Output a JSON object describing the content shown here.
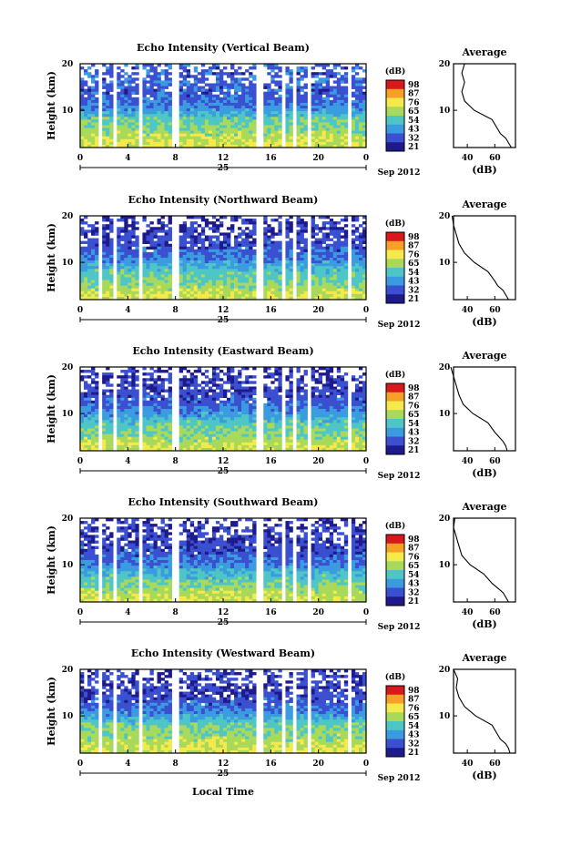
{
  "figure": {
    "colorbar_unit": "(dB)",
    "colorbar_ticks": [
      "98",
      "87",
      "76",
      "65",
      "54",
      "43",
      "32",
      "21"
    ],
    "colorbar_colors": [
      "#d7191c",
      "#f7a028",
      "#f5e94b",
      "#a9d95b",
      "#4fc6c6",
      "#3b9be0",
      "#3b4fd1",
      "#1e1a8c"
    ],
    "x_tick_labels": [
      "0",
      "4",
      "8",
      "12",
      "16",
      "20",
      "0"
    ],
    "date_day": "25",
    "date_label": "Sep 2012",
    "x_axis_label": "Local Time",
    "y_axis_label": "Height (km)",
    "y_tick_labels": [
      "20",
      "10"
    ],
    "avg_title": "Average",
    "avg_xlabel": "(dB)",
    "avg_x_tick_labels": [
      "40",
      "60"
    ]
  },
  "chart_data": [
    {
      "type": "heatmap",
      "title": "Echo Intensity (Vertical Beam)",
      "x_range": [
        0,
        24
      ],
      "y_range": [
        2,
        20
      ],
      "z_range": [
        21,
        98
      ],
      "profile_title": "Average",
      "profile": {
        "height_km": [
          2,
          3,
          4,
          5,
          6,
          8,
          10,
          12,
          14,
          16,
          18,
          20
        ],
        "mean_db": [
          72,
          70,
          68,
          64,
          62,
          58,
          45,
          38,
          36,
          38,
          36,
          38
        ]
      }
    },
    {
      "type": "heatmap",
      "title": "Echo Intensity (Northward Beam)",
      "x_range": [
        0,
        24
      ],
      "y_range": [
        2,
        20
      ],
      "z_range": [
        21,
        98
      ],
      "profile_title": "Average",
      "profile": {
        "height_km": [
          2,
          3,
          4,
          5,
          6,
          8,
          10,
          12,
          14,
          16,
          18,
          20
        ],
        "mean_db": [
          70,
          68,
          66,
          62,
          60,
          55,
          45,
          38,
          34,
          32,
          30,
          29
        ]
      }
    },
    {
      "type": "heatmap",
      "title": "Echo Intensity (Eastward Beam)",
      "x_range": [
        0,
        24
      ],
      "y_range": [
        2,
        20
      ],
      "z_range": [
        21,
        98
      ],
      "profile_title": "Average",
      "profile": {
        "height_km": [
          2,
          3,
          4,
          5,
          6,
          8,
          10,
          12,
          14,
          16,
          18,
          20
        ],
        "mean_db": [
          69,
          68,
          66,
          63,
          60,
          55,
          44,
          37,
          34,
          32,
          30,
          28
        ]
      }
    },
    {
      "type": "heatmap",
      "title": "Echo Intensity (Southward Beam)",
      "x_range": [
        0,
        24
      ],
      "y_range": [
        2,
        20
      ],
      "z_range": [
        21,
        98
      ],
      "profile_title": "Average",
      "profile": {
        "height_km": [
          2,
          3,
          4,
          5,
          6,
          8,
          10,
          12,
          14,
          16,
          18,
          20
        ],
        "mean_db": [
          70,
          68,
          66,
          62,
          58,
          52,
          42,
          36,
          34,
          32,
          30,
          31
        ]
      }
    },
    {
      "type": "heatmap",
      "title": "Echo Intensity (Westward Beam)",
      "x_range": [
        0,
        24
      ],
      "y_range": [
        2,
        20
      ],
      "z_range": [
        21,
        98
      ],
      "profile_title": "Average",
      "profile": {
        "height_km": [
          2,
          3,
          4,
          5,
          6,
          8,
          10,
          12,
          14,
          16,
          18,
          20
        ],
        "mean_db": [
          71,
          70,
          68,
          64,
          62,
          58,
          46,
          38,
          34,
          32,
          33,
          30
        ]
      }
    }
  ]
}
